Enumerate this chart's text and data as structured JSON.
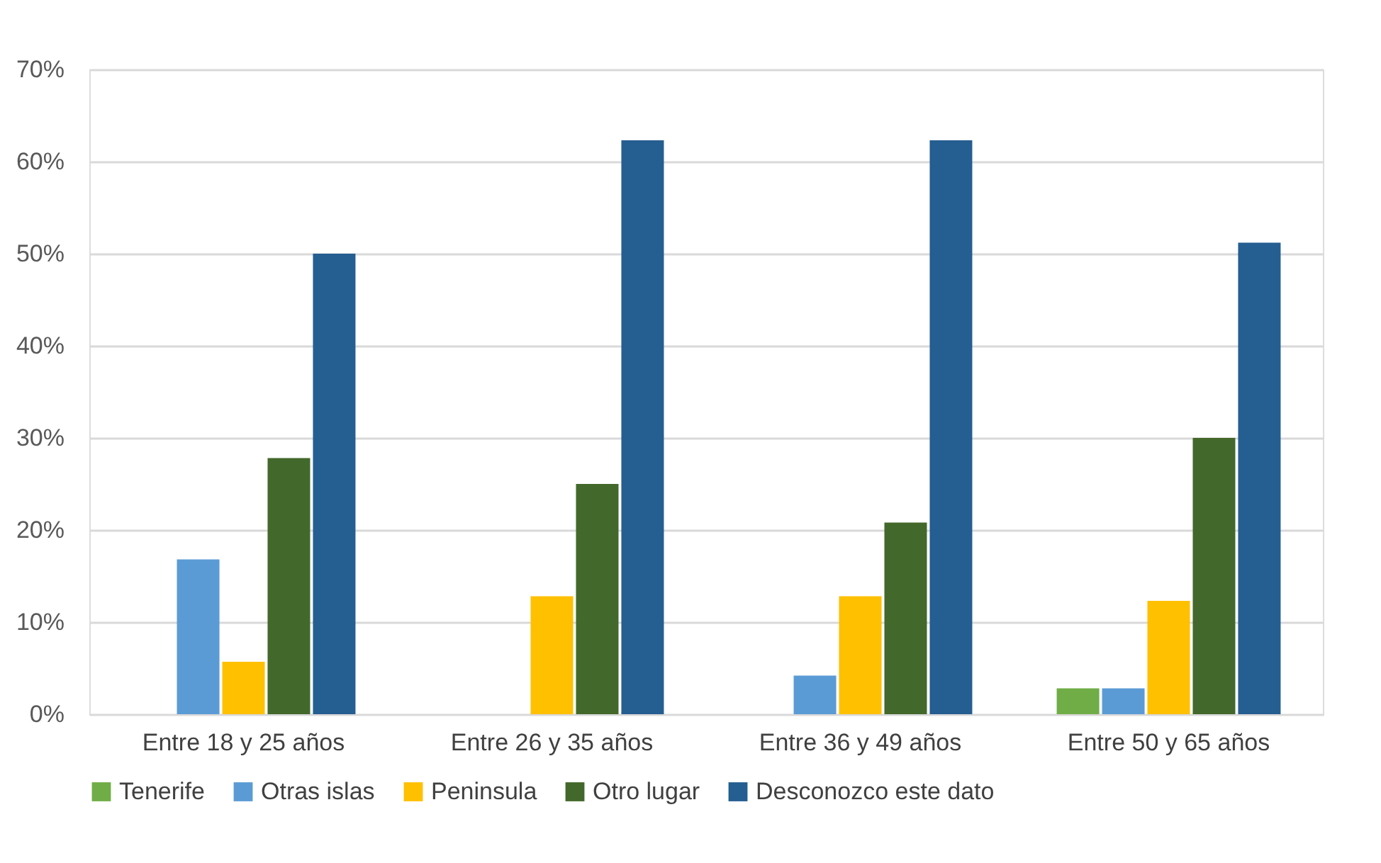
{
  "chart_data": {
    "type": "bar",
    "categories": [
      "Entre 18 y 25 años",
      "Entre 26 y 35 años",
      "Entre 36 y 49 años",
      "Entre 50 y 65 años"
    ],
    "series": [
      {
        "name": "Tenerife",
        "color": "#70ad47",
        "values": [
          0,
          0,
          0,
          2.8
        ]
      },
      {
        "name": "Otras islas",
        "color": "#5b9bd5",
        "values": [
          16.8,
          0,
          4.2,
          2.8
        ]
      },
      {
        "name": "Peninsula",
        "color": "#ffc000",
        "values": [
          5.7,
          12.8,
          12.8,
          12.3
        ]
      },
      {
        "name": "Otro lugar",
        "color": "#43682b",
        "values": [
          27.8,
          25,
          20.8,
          30
        ]
      },
      {
        "name": "Desconozco este dato",
        "color": "#255e91",
        "values": [
          50,
          62.3,
          62.3,
          51.2
        ]
      }
    ],
    "ylim": [
      0,
      70
    ],
    "yticks": [
      {
        "value": 0,
        "label": "0%"
      },
      {
        "value": 10,
        "label": "10%"
      },
      {
        "value": 20,
        "label": "20%"
      },
      {
        "value": 30,
        "label": "30%"
      },
      {
        "value": 40,
        "label": "40%"
      },
      {
        "value": 50,
        "label": "50%"
      },
      {
        "value": 60,
        "label": "60%"
      },
      {
        "value": 70,
        "label": "70%"
      }
    ],
    "grid": "y",
    "legend": "bottom"
  }
}
